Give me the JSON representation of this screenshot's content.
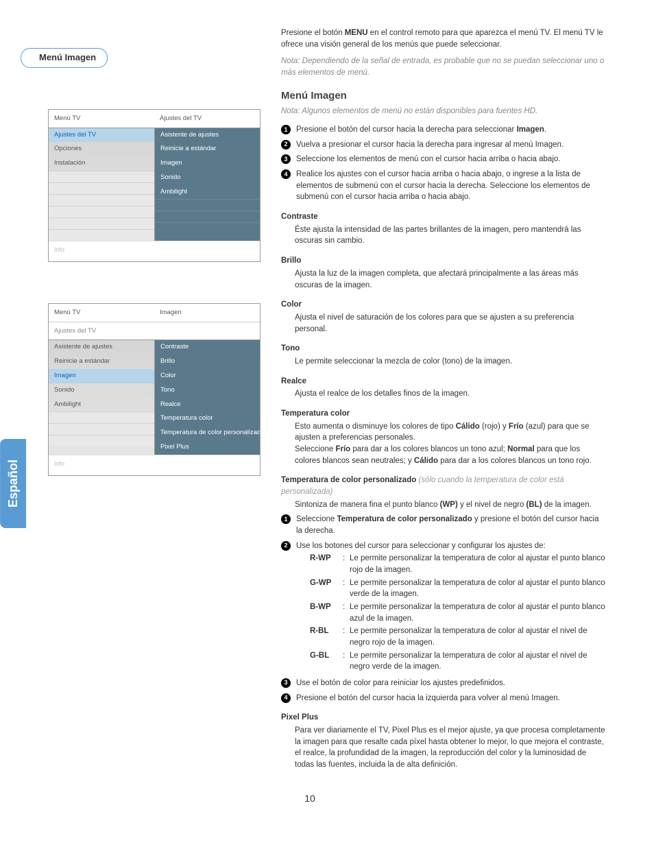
{
  "side_tab": "Español",
  "section_title": "Menú Imagen",
  "page_number": "10",
  "menu1": {
    "left_header": "Menú TV",
    "right_header": "Ajustes del TV",
    "left_items": [
      "Ajustes del TV",
      "Opciones",
      "Instalación",
      "",
      "",
      "",
      "",
      "",
      ""
    ],
    "left_highlight_index": 0,
    "right_items": [
      "Asistente de ajustes",
      "Reinicie a estándar",
      "Imagen",
      "Sonido",
      "Ambilight",
      "",
      "",
      ""
    ],
    "info": "Info"
  },
  "menu2": {
    "left_header": "Menú TV",
    "right_header": "Imagen",
    "left_parent": "Ajustes del TV",
    "left_items": [
      "Asistente de ajustes",
      "Reinicie a estándar",
      "Imagen",
      "Sonido",
      "Ambilight",
      "",
      "",
      ""
    ],
    "left_highlight_index": 2,
    "right_items": [
      "Contraste",
      "Brillo",
      "Color",
      "Tono",
      "Realce",
      "Temperatura color",
      "Temperatura de color personalizado",
      "Pixel Plus"
    ],
    "info": "Info"
  },
  "intro": {
    "line1a": "Presione el botón ",
    "line1b": "MENU",
    "line1c": " en el control remoto para que aparezca el menú TV. El menú TV le ofrece una visión general de los menús que puede seleccionar.",
    "note": "Nota: Dependiendo de la señal de entrada, es probable que no se puedan seleccionar uno o más elementos de menú."
  },
  "main_heading": "Menú Imagen",
  "main_note": "Nota: Algunos elementos de menú no están disponibles para fuentes HD.",
  "steps": [
    {
      "pre": "Presione el botón del cursor hacia la derecha para seleccionar ",
      "bold": "Imagen",
      "post": "."
    },
    {
      "pre": "Vuelva a presionar el cursor hacia la derecha para ingresar al menú Imagen.",
      "bold": "",
      "post": ""
    },
    {
      "pre": "Seleccione los elementos de menú con el cursor hacia arriba o hacia abajo.",
      "bold": "",
      "post": ""
    },
    {
      "pre": "Realice los ajustes con el cursor hacia arriba o hacia abajo, o ingrese a la lista de elementos de submenú con el cursor hacia la derecha. Seleccione los elementos de submenú con el cursor hacia arriba o hacia abajo.",
      "bold": "",
      "post": ""
    }
  ],
  "defs": {
    "contraste": {
      "title": "Contraste",
      "body": "Éste ajusta la intensidad de las partes brillantes de la imagen, pero mantendrá las oscuras sin cambio."
    },
    "brillo": {
      "title": "Brillo",
      "body": "Ajusta la luz de la imagen completa, que afectará principalmente a las áreas más oscuras de la imagen."
    },
    "color": {
      "title": "Color",
      "body": "Ajusta el nivel de saturación de los colores para que se ajusten a su preferencia personal."
    },
    "tono": {
      "title": "Tono",
      "body": "Le permite seleccionar la mezcla de color (tono) de la imagen."
    },
    "realce": {
      "title": "Realce",
      "body": "Ajusta el realce de los detalles finos de la imagen."
    },
    "tempcolor": {
      "title": "Temperatura color",
      "body_parts": [
        "Esto aumenta o disminuye los colores de tipo ",
        "Cálido",
        " (rojo) y ",
        "Frío",
        " (azul) para que se ajusten a preferencias personales.",
        "Seleccione ",
        "Frío",
        " para dar a los colores blancos un tono azul; ",
        "Normal",
        " para que los colores blancos sean neutrales; y ",
        "Cálido",
        " para dar a los colores blancos un tono rojo."
      ]
    },
    "tempcustom": {
      "title": "Temperatura de color personalizado",
      "inline_note": "(sólo cuando la temperatura de color está personalizada)",
      "body_pre": "Sintoniza de manera fina el punto blanco ",
      "body_wp": "(WP)",
      "body_mid": " y el nivel de negro ",
      "body_bl": "(BL)",
      "body_post": " de la imagen.",
      "step1_pre": "Seleccione ",
      "step1_bold": "Temperatura de color personalizado",
      "step1_post": " y presione el botón del cursor hacia la derecha.",
      "step2": "Use los botones del cursor para seleccionar y configurar los ajustes de:",
      "wp_items": [
        {
          "label": "R-WP",
          "sep": ":",
          "text": "Le permite personalizar la temperatura de color al ajustar el punto blanco rojo de la imagen."
        },
        {
          "label": "G-WP",
          "sep": ":",
          "text": "Le permite personalizar la temperatura de color al ajustar el punto blanco verde de la imagen."
        },
        {
          "label": "B-WP",
          "sep": ":",
          "text": "Le permite personalizar la temperatura de color al ajustar el punto blanco azul de la imagen."
        },
        {
          "label": "R-BL",
          "sep": ":",
          "text": "Le permite personalizar la temperatura de color al ajustar el nivel de negro rojo de la imagen."
        },
        {
          "label": "G-BL",
          "sep": ":",
          "text": "Le permite personalizar la temperatura de color al ajustar el nivel de negro verde de la imagen."
        }
      ],
      "step3": "Use el botón de color para reiniciar los ajustes predefinidos.",
      "step4": "Presione el botón del cursor hacia la izquierda para volver al menú Imagen."
    },
    "pixelplus": {
      "title": "Pixel Plus",
      "body": "Para ver diariamente el TV, Pixel Plus es el mejor ajuste, ya que procesa completamente la imagen para que resalte cada píxel hasta obtener lo mejor, lo que mejora el contraste, el realce, la profundidad de la imagen, la reproducción del color y la luminosidad de todas las fuentes, incluida la de alta definición."
    }
  }
}
